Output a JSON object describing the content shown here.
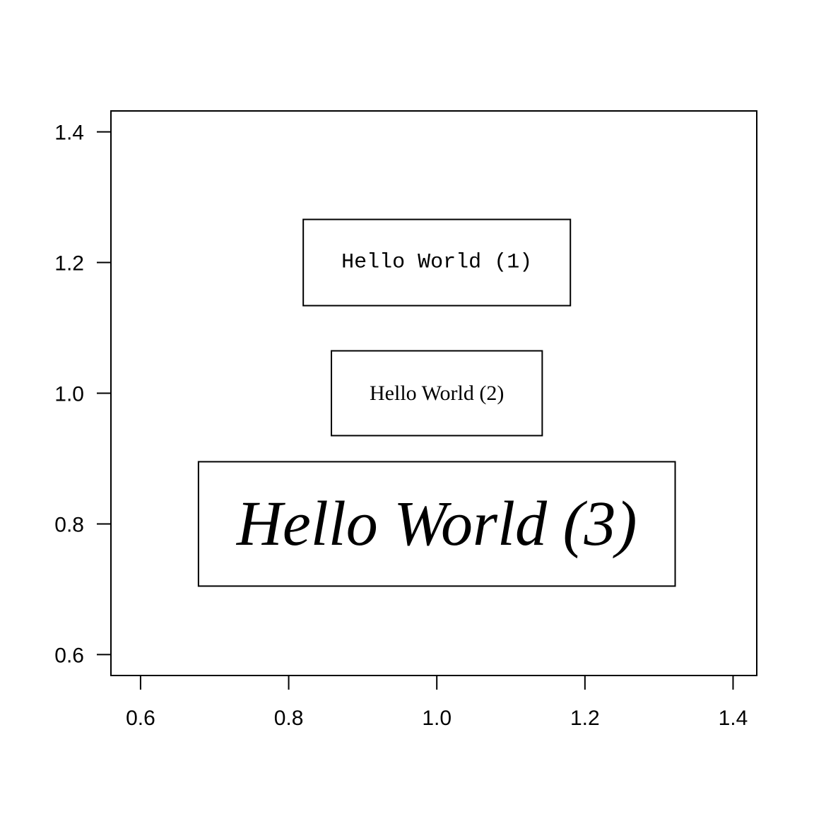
{
  "chart_data": {
    "type": "scatter",
    "title": "",
    "xlabel": "",
    "ylabel": "",
    "xlim": [
      0.56,
      1.432
    ],
    "ylim": [
      0.568,
      1.432
    ],
    "x_ticks": [
      0.6,
      0.8,
      1.0,
      1.2,
      1.4
    ],
    "x_tick_labels": [
      "0.6",
      "0.8",
      "1.0",
      "1.2",
      "1.4"
    ],
    "y_ticks": [
      0.6,
      0.8,
      1.0,
      1.2,
      1.4
    ],
    "y_tick_labels": [
      "0.6",
      "0.8",
      "1.0",
      "1.2",
      "1.4"
    ],
    "grid": false,
    "legend": "none",
    "annotations": [
      {
        "text": "Hello World (1)",
        "x": 1.0,
        "y": 1.2,
        "font_style": "monospace",
        "boxed": true
      },
      {
        "text": "Hello World (2)",
        "x": 1.0,
        "y": 1.0,
        "font_style": "serif",
        "boxed": true
      },
      {
        "text": "Hello World (3)",
        "x": 1.0,
        "y": 0.8,
        "font_style": "serif-italic",
        "boxed": true
      }
    ],
    "colors": {
      "foreground": "#000000",
      "background": "#ffffff"
    }
  }
}
